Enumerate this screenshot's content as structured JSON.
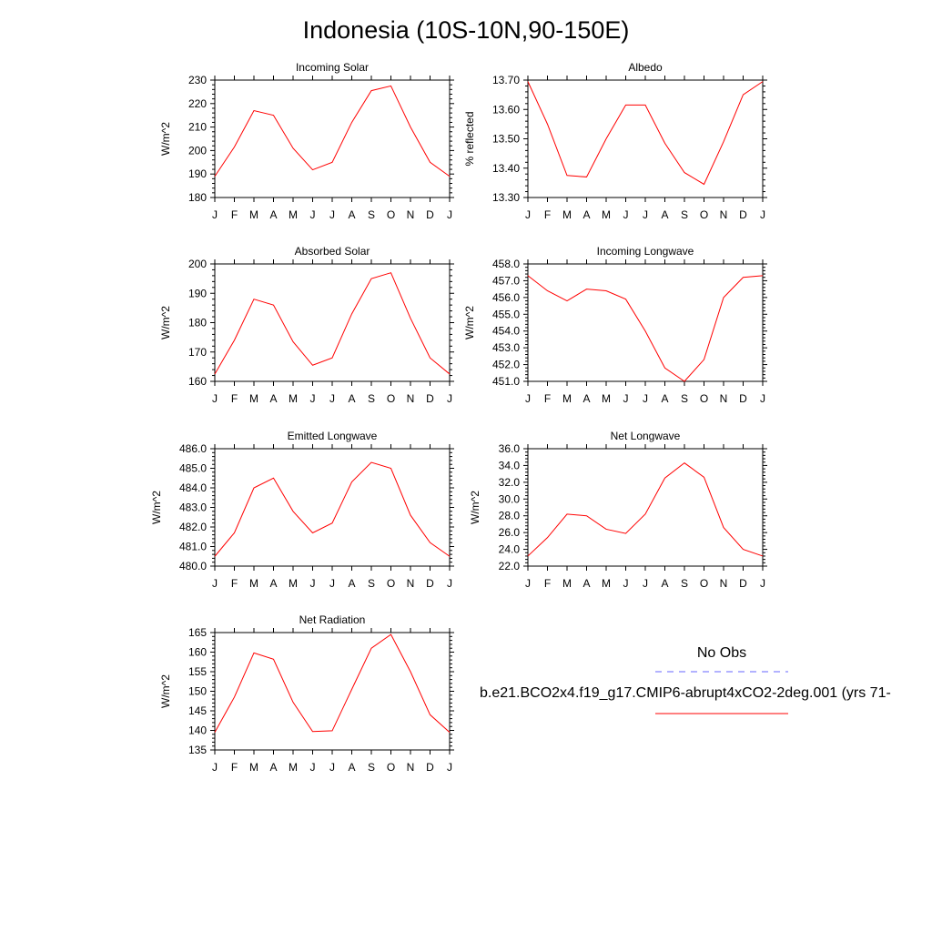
{
  "title": "Indonesia (10S-10N,90-150E)",
  "colors": {
    "model": "#ff0000",
    "obs": "#6666ff",
    "axis": "#000000"
  },
  "month_labels": [
    "J",
    "F",
    "M",
    "A",
    "M",
    "J",
    "J",
    "A",
    "S",
    "O",
    "N",
    "D",
    "J"
  ],
  "legend": {
    "obs_label": "No Obs",
    "model_label": "b.e21.BCO2x4.f19_g17.CMIP6-abrupt4xCO2-2deg.001 (yrs 71-"
  },
  "chart_data": [
    {
      "type": "line",
      "title": "Incoming Solar",
      "ylabel": "W/m^2",
      "ylim": [
        180,
        230
      ],
      "yticks": [
        "180",
        "190",
        "200",
        "210",
        "220",
        "230"
      ],
      "values": [
        189,
        201.5,
        217,
        215,
        201,
        191.8,
        195,
        212,
        225.5,
        227.5,
        210,
        195,
        189
      ]
    },
    {
      "type": "line",
      "title": "Albedo",
      "ylabel": "% reflected",
      "ylim": [
        13.3,
        13.7
      ],
      "yticks": [
        "13.30",
        "13.40",
        "13.50",
        "13.60",
        "13.70"
      ],
      "values": [
        13.695,
        13.55,
        13.375,
        13.37,
        13.5,
        13.615,
        13.615,
        13.485,
        13.385,
        13.345,
        13.49,
        13.65,
        13.695
      ]
    },
    {
      "type": "line",
      "title": "Absorbed Solar",
      "ylabel": "W/m^2",
      "ylim": [
        160,
        200
      ],
      "yticks": [
        "160",
        "170",
        "180",
        "190",
        "200"
      ],
      "values": [
        162.5,
        174,
        188,
        186,
        173.5,
        165.5,
        168,
        183,
        195,
        197,
        181.5,
        168,
        162.5
      ]
    },
    {
      "type": "line",
      "title": "Incoming Longwave",
      "ylabel": "W/m^2",
      "ylim": [
        451.0,
        458.0
      ],
      "yticks": [
        "451.0",
        "452.0",
        "453.0",
        "454.0",
        "455.0",
        "456.0",
        "457.0",
        "458.0"
      ],
      "values": [
        457.3,
        456.4,
        455.8,
        456.5,
        456.4,
        455.9,
        454.0,
        451.8,
        451.0,
        452.3,
        456.0,
        457.2,
        457.3
      ]
    },
    {
      "type": "line",
      "title": "Emitted Longwave",
      "ylabel": "W/m^2",
      "ylim": [
        480.0,
        486.0
      ],
      "yticks": [
        "480.0",
        "481.0",
        "482.0",
        "483.0",
        "484.0",
        "485.0",
        "486.0"
      ],
      "values": [
        480.5,
        481.7,
        484.0,
        484.5,
        482.8,
        481.7,
        482.2,
        484.3,
        485.3,
        485.0,
        482.6,
        481.2,
        480.5
      ]
    },
    {
      "type": "line",
      "title": "Net Longwave",
      "ylabel": "W/m^2",
      "ylim": [
        22.0,
        36.0
      ],
      "yticks": [
        "22.0",
        "24.0",
        "26.0",
        "28.0",
        "30.0",
        "32.0",
        "34.0",
        "36.0"
      ],
      "values": [
        23.2,
        25.4,
        28.2,
        28.0,
        26.4,
        25.9,
        28.2,
        32.5,
        34.3,
        32.6,
        26.6,
        24.0,
        23.2
      ]
    },
    {
      "type": "line",
      "title": "Net Radiation",
      "ylabel": "W/m^2",
      "ylim": [
        135,
        165
      ],
      "yticks": [
        "135",
        "140",
        "145",
        "150",
        "155",
        "160",
        "165"
      ],
      "values": [
        139.5,
        148.5,
        159.8,
        158.2,
        147.2,
        139.7,
        139.9,
        150.5,
        161.0,
        164.5,
        155.0,
        144.0,
        139.5
      ]
    }
  ]
}
